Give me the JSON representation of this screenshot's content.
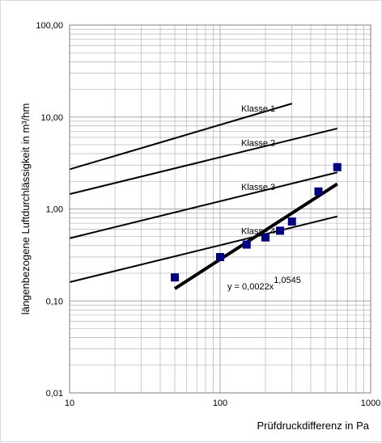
{
  "chart_data": {
    "type": "scatter",
    "x_scale": "log",
    "y_scale": "log",
    "xlim": [
      10,
      1000
    ],
    "ylim": [
      0.01,
      100
    ],
    "xlabel": "Prüfdruckdifferenz in Pa",
    "ylabel": "längenbezogene Luftdurchlässigkeit in m³/hm",
    "x_ticks": [
      "10",
      "100",
      "1000"
    ],
    "y_ticks": [
      "0,01",
      "0,10",
      "1,00",
      "10,00",
      "100,00"
    ],
    "grid": true,
    "class_lines": [
      {
        "label": "Klasse 1",
        "x": [
          10,
          300
        ],
        "y": [
          2.7,
          14.0
        ]
      },
      {
        "label": "Klasse 2",
        "x": [
          10,
          600
        ],
        "y": [
          1.45,
          7.5
        ]
      },
      {
        "label": "Klasse 3",
        "x": [
          10,
          600
        ],
        "y": [
          0.48,
          2.5
        ]
      },
      {
        "label": "Klasse 4",
        "x": [
          10,
          600
        ],
        "y": [
          0.16,
          0.83
        ]
      }
    ],
    "series": [
      {
        "x": [
          50,
          100,
          150,
          200,
          250,
          300,
          450,
          600
        ],
        "y": [
          0.18,
          0.3,
          0.41,
          0.49,
          0.58,
          0.73,
          1.55,
          2.85
        ]
      }
    ],
    "trendline": {
      "equation": "y = 0,0022x",
      "exponent": "1,0545",
      "a": 0.0022,
      "b": 1.0545,
      "x_range": [
        50,
        600
      ]
    },
    "colors": {
      "markers": "#000080",
      "lines": "#000000",
      "grid": "#a6a6a6",
      "trend": "#000000"
    }
  }
}
